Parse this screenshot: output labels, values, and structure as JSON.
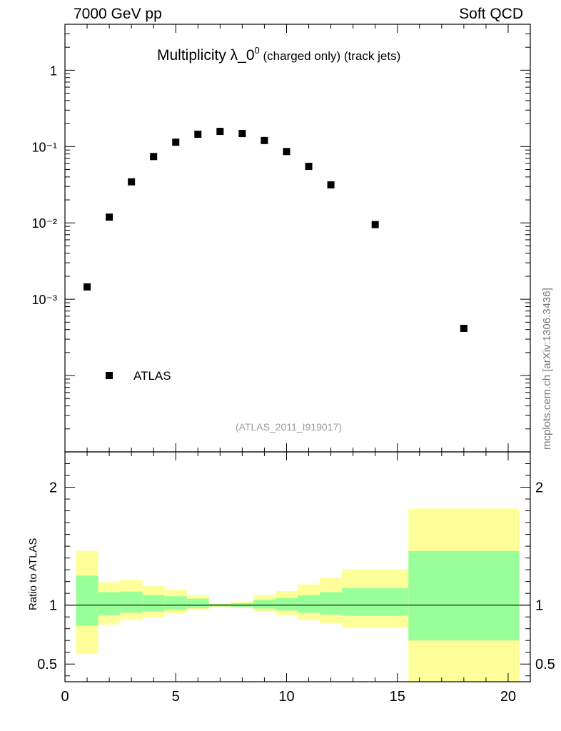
{
  "header": {
    "left": "7000 GeV pp",
    "right": "Soft QCD"
  },
  "title": {
    "main": "Multiplicity λ_0",
    "superscript": "0",
    "rest": " (charged only) (track jets)"
  },
  "watermark": "(ATLAS_2011_I919017)",
  "side_note": "mcplots.cern.ch [arXiv:1306.3436]",
  "chart_data": [
    {
      "type": "scatter",
      "panel": "main",
      "yscale": "log",
      "ylim": [
        1e-05,
        4
      ],
      "xlim": [
        0,
        21
      ],
      "y_tick_labels": [
        "1",
        "10⁻¹",
        "10⁻²",
        "10⁻³"
      ],
      "y_tick_values": [
        1,
        0.1,
        0.01,
        0.001
      ],
      "legend_placement": "bottom-left",
      "series": [
        {
          "name": "ATLAS",
          "color": "#000000",
          "marker": "square",
          "x": [
            1,
            2,
            3,
            4,
            5,
            6,
            7,
            8,
            9,
            10,
            11,
            12,
            14,
            18
          ],
          "y": [
            0.00145,
            0.0119,
            0.0345,
            0.074,
            0.114,
            0.145,
            0.158,
            0.148,
            0.12,
            0.086,
            0.055,
            0.0315,
            0.0095,
            0.000415
          ]
        }
      ]
    },
    {
      "type": "area",
      "panel": "ratio",
      "ylabel": "Ratio to ATLAS",
      "ylim": [
        0.35,
        2.3
      ],
      "xlim": [
        0,
        21
      ],
      "x_tick_labels": [
        "0",
        "5",
        "10",
        "15",
        "20"
      ],
      "x_tick_values": [
        0,
        5,
        10,
        15,
        20
      ],
      "y_tick_labels": [
        "0.5",
        "1",
        "2"
      ],
      "y_tick_values": [
        0.5,
        1,
        2
      ],
      "reference_line": 1,
      "bands": {
        "bin_edges": [
          [
            0.5,
            1.5
          ],
          [
            1.5,
            2.5
          ],
          [
            2.5,
            3.5
          ],
          [
            3.5,
            4.5
          ],
          [
            4.5,
            5.5
          ],
          [
            5.5,
            6.5
          ],
          [
            6.5,
            7.5
          ],
          [
            7.5,
            8.5
          ],
          [
            8.5,
            9.5
          ],
          [
            9.5,
            10.5
          ],
          [
            10.5,
            11.5
          ],
          [
            11.5,
            12.5
          ],
          [
            12.5,
            15.5
          ],
          [
            15.5,
            20.5
          ]
        ],
        "stat_color": "#99ff99",
        "total_color": "#ffff99",
        "stat_low": [
          0.825,
          0.915,
          0.935,
          0.945,
          0.96,
          0.975,
          0.99,
          0.985,
          0.97,
          0.955,
          0.935,
          0.92,
          0.91,
          0.7
        ],
        "stat_high": [
          1.25,
          1.11,
          1.115,
          1.085,
          1.075,
          1.055,
          1.01,
          1.015,
          1.045,
          1.06,
          1.085,
          1.11,
          1.145,
          1.46
        ],
        "total_low": [
          0.585,
          0.835,
          0.875,
          0.9,
          0.93,
          0.96,
          0.985,
          0.975,
          0.945,
          0.915,
          0.875,
          0.845,
          0.81,
          0.35
        ],
        "total_high": [
          1.46,
          1.195,
          1.215,
          1.16,
          1.13,
          1.085,
          1.02,
          1.03,
          1.085,
          1.12,
          1.175,
          1.23,
          1.305,
          1.82
        ]
      }
    }
  ]
}
